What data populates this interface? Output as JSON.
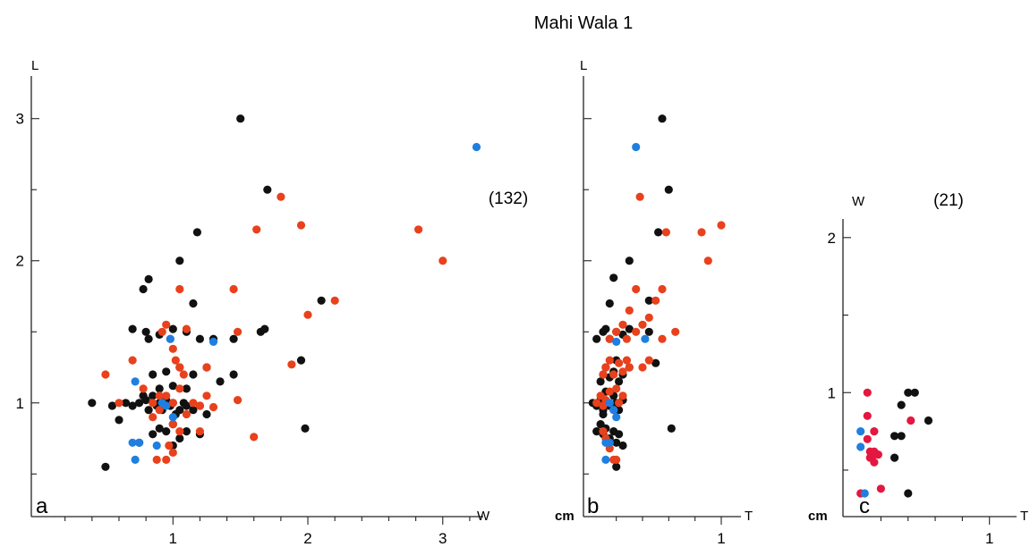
{
  "title": "Mahi Wala 1",
  "colors": {
    "black": "#111111",
    "red": "#e8411c",
    "blue": "#1f7fe0",
    "crimson": "#e3173f"
  },
  "chart_data": [
    {
      "type": "scatter",
      "panel_label": "a",
      "xlabel": "W",
      "ylabel": "L",
      "unit": "",
      "count_label": "(132)",
      "xticks": [
        "1",
        "2",
        "3"
      ],
      "yticks": [
        "1",
        "2",
        "3"
      ],
      "xlim": [
        -0.05,
        3.3
      ],
      "ylim": [
        0.2,
        3.3
      ],
      "series": [
        {
          "color": "black",
          "points": [
            [
              0.5,
              0.55
            ],
            [
              0.4,
              1.0
            ],
            [
              0.55,
              0.98
            ],
            [
              0.6,
              0.88
            ],
            [
              0.65,
              1.0
            ],
            [
              0.7,
              0.98
            ],
            [
              0.75,
              1.0
            ],
            [
              0.78,
              1.05
            ],
            [
              0.8,
              1.02
            ],
            [
              0.82,
              0.95
            ],
            [
              0.85,
              1.05
            ],
            [
              0.88,
              0.98
            ],
            [
              0.9,
              1.0
            ],
            [
              0.92,
              0.95
            ],
            [
              0.95,
              1.02
            ],
            [
              0.98,
              0.98
            ],
            [
              1.0,
              1.0
            ],
            [
              1.02,
              0.92
            ],
            [
              1.05,
              0.95
            ],
            [
              1.08,
              1.0
            ],
            [
              1.1,
              0.98
            ],
            [
              1.15,
              0.95
            ],
            [
              1.2,
              0.98
            ],
            [
              1.25,
              0.92
            ],
            [
              0.85,
              0.78
            ],
            [
              0.9,
              0.82
            ],
            [
              0.95,
              0.8
            ],
            [
              1.0,
              0.85
            ],
            [
              1.05,
              0.75
            ],
            [
              1.1,
              0.8
            ],
            [
              1.2,
              0.78
            ],
            [
              0.75,
              0.72
            ],
            [
              1.0,
              0.7
            ],
            [
              0.7,
              1.52
            ],
            [
              0.8,
              1.5
            ],
            [
              0.82,
              1.45
            ],
            [
              0.9,
              1.48
            ],
            [
              1.0,
              1.52
            ],
            [
              1.1,
              1.5
            ],
            [
              1.2,
              1.45
            ],
            [
              1.3,
              1.45
            ],
            [
              0.85,
              1.2
            ],
            [
              0.95,
              1.22
            ],
            [
              1.05,
              1.25
            ],
            [
              1.15,
              1.2
            ],
            [
              1.25,
              1.25
            ],
            [
              1.35,
              1.15
            ],
            [
              1.45,
              1.2
            ],
            [
              1.65,
              1.5
            ],
            [
              1.68,
              1.52
            ],
            [
              1.45,
              1.45
            ],
            [
              0.9,
              1.1
            ],
            [
              1.0,
              1.12
            ],
            [
              1.1,
              1.1
            ],
            [
              0.78,
              1.8
            ],
            [
              0.82,
              1.87
            ],
            [
              1.05,
              2.0
            ],
            [
              1.15,
              1.7
            ],
            [
              1.18,
              2.2
            ],
            [
              1.5,
              3.0
            ],
            [
              1.7,
              2.5
            ],
            [
              1.95,
              1.3
            ],
            [
              1.98,
              0.82
            ],
            [
              2.1,
              1.72
            ]
          ]
        },
        {
          "color": "red",
          "points": [
            [
              0.5,
              1.2
            ],
            [
              0.6,
              1.0
            ],
            [
              0.7,
              1.3
            ],
            [
              0.78,
              1.1
            ],
            [
              0.85,
              1.0
            ],
            [
              0.9,
              1.05
            ],
            [
              0.92,
              1.5
            ],
            [
              0.95,
              1.55
            ],
            [
              0.98,
              1.45
            ],
            [
              1.0,
              1.38
            ],
            [
              1.02,
              1.3
            ],
            [
              1.05,
              1.25
            ],
            [
              1.08,
              1.2
            ],
            [
              1.1,
              1.52
            ],
            [
              1.15,
              1.0
            ],
            [
              1.2,
              0.98
            ],
            [
              1.25,
              1.05
            ],
            [
              1.3,
              0.97
            ],
            [
              0.85,
              0.9
            ],
            [
              0.9,
              0.95
            ],
            [
              0.95,
              1.05
            ],
            [
              1.0,
              1.0
            ],
            [
              1.05,
              1.1
            ],
            [
              1.1,
              0.92
            ],
            [
              1.0,
              0.85
            ],
            [
              1.05,
              0.8
            ],
            [
              1.2,
              0.8
            ],
            [
              0.88,
              0.6
            ],
            [
              0.95,
              0.6
            ],
            [
              1.0,
              0.65
            ],
            [
              0.97,
              0.7
            ],
            [
              1.05,
              1.8
            ],
            [
              1.25,
              1.25
            ],
            [
              1.45,
              1.8
            ],
            [
              1.48,
              1.5
            ],
            [
              1.48,
              1.02
            ],
            [
              1.6,
              0.76
            ],
            [
              1.62,
              2.22
            ],
            [
              1.8,
              2.45
            ],
            [
              1.88,
              1.27
            ],
            [
              1.95,
              2.25
            ],
            [
              2.0,
              1.62
            ],
            [
              2.2,
              1.72
            ],
            [
              2.82,
              2.22
            ],
            [
              3.0,
              2.0
            ]
          ]
        },
        {
          "color": "blue",
          "points": [
            [
              0.7,
              0.72
            ],
            [
              0.75,
              0.72
            ],
            [
              0.72,
              0.6
            ],
            [
              0.72,
              1.15
            ],
            [
              0.88,
              0.7
            ],
            [
              0.92,
              1.0
            ],
            [
              0.95,
              0.98
            ],
            [
              1.0,
              0.9
            ],
            [
              0.98,
              1.45
            ],
            [
              1.3,
              1.43
            ],
            [
              3.25,
              2.8
            ]
          ]
        }
      ]
    },
    {
      "type": "scatter",
      "panel_label": "b",
      "xlabel": "T",
      "ylabel": "L",
      "unit": "cm",
      "count_label": "",
      "xticks": [
        "1"
      ],
      "yticks": [],
      "xlim": [
        -0.05,
        1.15
      ],
      "ylim": [
        0.2,
        3.3
      ],
      "series": [
        {
          "color": "black",
          "points": [
            [
              0.02,
              1.0
            ],
            [
              0.05,
              0.98
            ],
            [
              0.08,
              1.02
            ],
            [
              0.1,
              0.95
            ],
            [
              0.12,
              1.0
            ],
            [
              0.15,
              0.98
            ],
            [
              0.18,
              1.05
            ],
            [
              0.2,
              1.0
            ],
            [
              0.22,
              0.95
            ],
            [
              0.25,
              1.02
            ],
            [
              0.05,
              0.8
            ],
            [
              0.08,
              0.85
            ],
            [
              0.1,
              0.78
            ],
            [
              0.12,
              0.82
            ],
            [
              0.15,
              0.75
            ],
            [
              0.18,
              0.8
            ],
            [
              0.2,
              0.72
            ],
            [
              0.22,
              0.78
            ],
            [
              0.25,
              0.7
            ],
            [
              0.08,
              1.15
            ],
            [
              0.1,
              1.2
            ],
            [
              0.12,
              1.25
            ],
            [
              0.15,
              1.18
            ],
            [
              0.18,
              1.22
            ],
            [
              0.2,
              1.3
            ],
            [
              0.22,
              1.15
            ],
            [
              0.25,
              1.2
            ],
            [
              0.3,
              1.25
            ],
            [
              0.05,
              1.45
            ],
            [
              0.1,
              1.5
            ],
            [
              0.12,
              1.52
            ],
            [
              0.15,
              1.45
            ],
            [
              0.2,
              1.5
            ],
            [
              0.25,
              1.48
            ],
            [
              0.3,
              1.52
            ],
            [
              0.15,
              1.7
            ],
            [
              0.18,
              1.88
            ],
            [
              0.3,
              2.0
            ],
            [
              0.45,
              1.5
            ],
            [
              0.5,
              1.28
            ],
            [
              0.52,
              2.2
            ],
            [
              0.55,
              3.0
            ],
            [
              0.6,
              2.5
            ],
            [
              0.62,
              0.82
            ],
            [
              0.45,
              1.72
            ],
            [
              0.2,
              0.55
            ],
            [
              0.1,
              0.92
            ],
            [
              0.12,
              1.08
            ]
          ]
        },
        {
          "color": "red",
          "points": [
            [
              0.05,
              1.0
            ],
            [
              0.08,
              1.05
            ],
            [
              0.1,
              0.98
            ],
            [
              0.12,
              1.02
            ],
            [
              0.15,
              1.08
            ],
            [
              0.18,
              0.95
            ],
            [
              0.2,
              1.1
            ],
            [
              0.22,
              1.0
            ],
            [
              0.25,
              1.05
            ],
            [
              0.1,
              1.2
            ],
            [
              0.12,
              1.25
            ],
            [
              0.15,
              1.3
            ],
            [
              0.18,
              1.2
            ],
            [
              0.22,
              1.28
            ],
            [
              0.25,
              1.22
            ],
            [
              0.28,
              1.3
            ],
            [
              0.3,
              1.25
            ],
            [
              0.1,
              0.8
            ],
            [
              0.12,
              0.75
            ],
            [
              0.15,
              0.68
            ],
            [
              0.18,
              0.6
            ],
            [
              0.2,
              0.6
            ],
            [
              0.15,
              1.45
            ],
            [
              0.2,
              1.5
            ],
            [
              0.25,
              1.55
            ],
            [
              0.28,
              1.45
            ],
            [
              0.35,
              1.5
            ],
            [
              0.4,
              1.55
            ],
            [
              0.45,
              1.6
            ],
            [
              0.5,
              1.72
            ],
            [
              0.55,
              1.8
            ],
            [
              0.35,
              1.8
            ],
            [
              0.3,
              1.65
            ],
            [
              0.4,
              1.25
            ],
            [
              0.45,
              1.3
            ],
            [
              0.38,
              2.45
            ],
            [
              0.58,
              2.2
            ],
            [
              0.55,
              1.45
            ],
            [
              0.65,
              1.5
            ],
            [
              0.85,
              2.2
            ],
            [
              0.9,
              2.0
            ],
            [
              1.0,
              2.25
            ]
          ]
        },
        {
          "color": "blue",
          "points": [
            [
              0.12,
              0.72
            ],
            [
              0.15,
              0.72
            ],
            [
              0.12,
              0.6
            ],
            [
              0.15,
              1.0
            ],
            [
              0.18,
              0.95
            ],
            [
              0.2,
              0.9
            ],
            [
              0.2,
              1.43
            ],
            [
              0.42,
              1.45
            ],
            [
              0.35,
              2.8
            ]
          ]
        }
      ]
    },
    {
      "type": "scatter",
      "panel_label": "c",
      "xlabel": "T",
      "ylabel": "W",
      "unit": "cm",
      "count_label": "(21)",
      "xticks": [
        "1"
      ],
      "yticks": [
        "1",
        "2"
      ],
      "xlim": [
        -0.08,
        1.2
      ],
      "ylim": [
        0.2,
        2.12
      ],
      "series": [
        {
          "color": "black",
          "points": [
            [
              0.35,
              0.92
            ],
            [
              0.4,
              1.0
            ],
            [
              0.45,
              1.0
            ],
            [
              0.3,
              0.72
            ],
            [
              0.35,
              0.72
            ],
            [
              0.3,
              0.58
            ],
            [
              0.55,
              0.82
            ],
            [
              0.4,
              0.35
            ]
          ]
        },
        {
          "color": "crimson",
          "points": [
            [
              0.1,
              1.0
            ],
            [
              0.1,
              0.85
            ],
            [
              0.15,
              0.75
            ],
            [
              0.1,
              0.7
            ],
            [
              0.12,
              0.62
            ],
            [
              0.15,
              0.6
            ],
            [
              0.12,
              0.58
            ],
            [
              0.15,
              0.62
            ],
            [
              0.18,
              0.6
            ],
            [
              0.15,
              0.55
            ],
            [
              0.42,
              0.82
            ],
            [
              0.2,
              0.38
            ],
            [
              0.05,
              0.35
            ]
          ]
        },
        {
          "color": "blue",
          "points": [
            [
              0.05,
              0.75
            ],
            [
              0.05,
              0.65
            ],
            [
              0.08,
              0.35
            ]
          ]
        }
      ]
    }
  ]
}
